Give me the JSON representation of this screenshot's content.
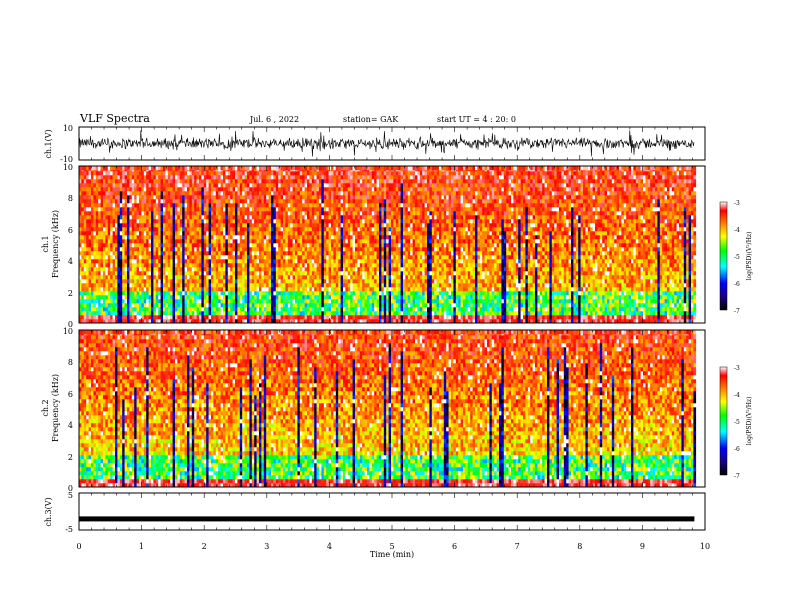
{
  "header": {
    "title": "VLF Spectra",
    "date": "Jul. 6 , 2022",
    "station": "station= GAK",
    "start_ut": "start UT =  4 : 20: 0"
  },
  "chart_data": [
    {
      "type": "line",
      "name": "waveform-ch1",
      "ylabel": "ch.1(V)",
      "ylim": [
        -10,
        10
      ],
      "yticks": [
        "10",
        "-10"
      ],
      "xlim": [
        0,
        10
      ],
      "baseline": 0,
      "amplitude_typical": 4
    },
    {
      "type": "heatmap",
      "name": "spectrogram-ch1",
      "ylabel": "ch.1\nFrequency (kHz)",
      "ylim": [
        0,
        10
      ],
      "yticks": [
        "0",
        "2",
        "4",
        "6",
        "8",
        "10"
      ],
      "xlim": [
        0,
        10
      ],
      "colorbar": {
        "label": "log(PSD)(V²/Hz)",
        "range": [
          -7,
          -3
        ],
        "ticks": [
          "-3",
          "-4",
          "-5",
          "-6",
          "-7"
        ]
      },
      "dominant_level": -3.5,
      "data_end_min": 9.83
    },
    {
      "type": "heatmap",
      "name": "spectrogram-ch2",
      "ylabel": "ch.2\nFrequency (kHz)",
      "ylim": [
        0,
        10
      ],
      "yticks": [
        "0",
        "2",
        "4",
        "6",
        "8",
        "10"
      ],
      "xlim": [
        0,
        10
      ],
      "colorbar": {
        "label": "log(PSD)(V²/Hz)",
        "range": [
          -7,
          -3
        ],
        "ticks": [
          "-3",
          "-4",
          "-5",
          "-6",
          "-7"
        ]
      },
      "dominant_level": -3.6,
      "data_end_min": 9.83
    },
    {
      "type": "line",
      "name": "waveform-ch3",
      "ylabel": "ch.3(V)",
      "ylim": [
        -5,
        5
      ],
      "yticks": [
        "5",
        "-5"
      ],
      "xlim": [
        0,
        10
      ],
      "xlabel": "Time (min)",
      "xticks": [
        "0",
        "1",
        "2",
        "3",
        "4",
        "5",
        "6",
        "7",
        "8",
        "9",
        "10"
      ],
      "value": -2,
      "data_end_min": 9.83
    }
  ],
  "colors": {
    "colormap": [
      "#000000",
      "#1a0080",
      "#0000ff",
      "#00ffff",
      "#00ff00",
      "#ffff00",
      "#ff8000",
      "#ff0000",
      "#ffffff"
    ]
  }
}
